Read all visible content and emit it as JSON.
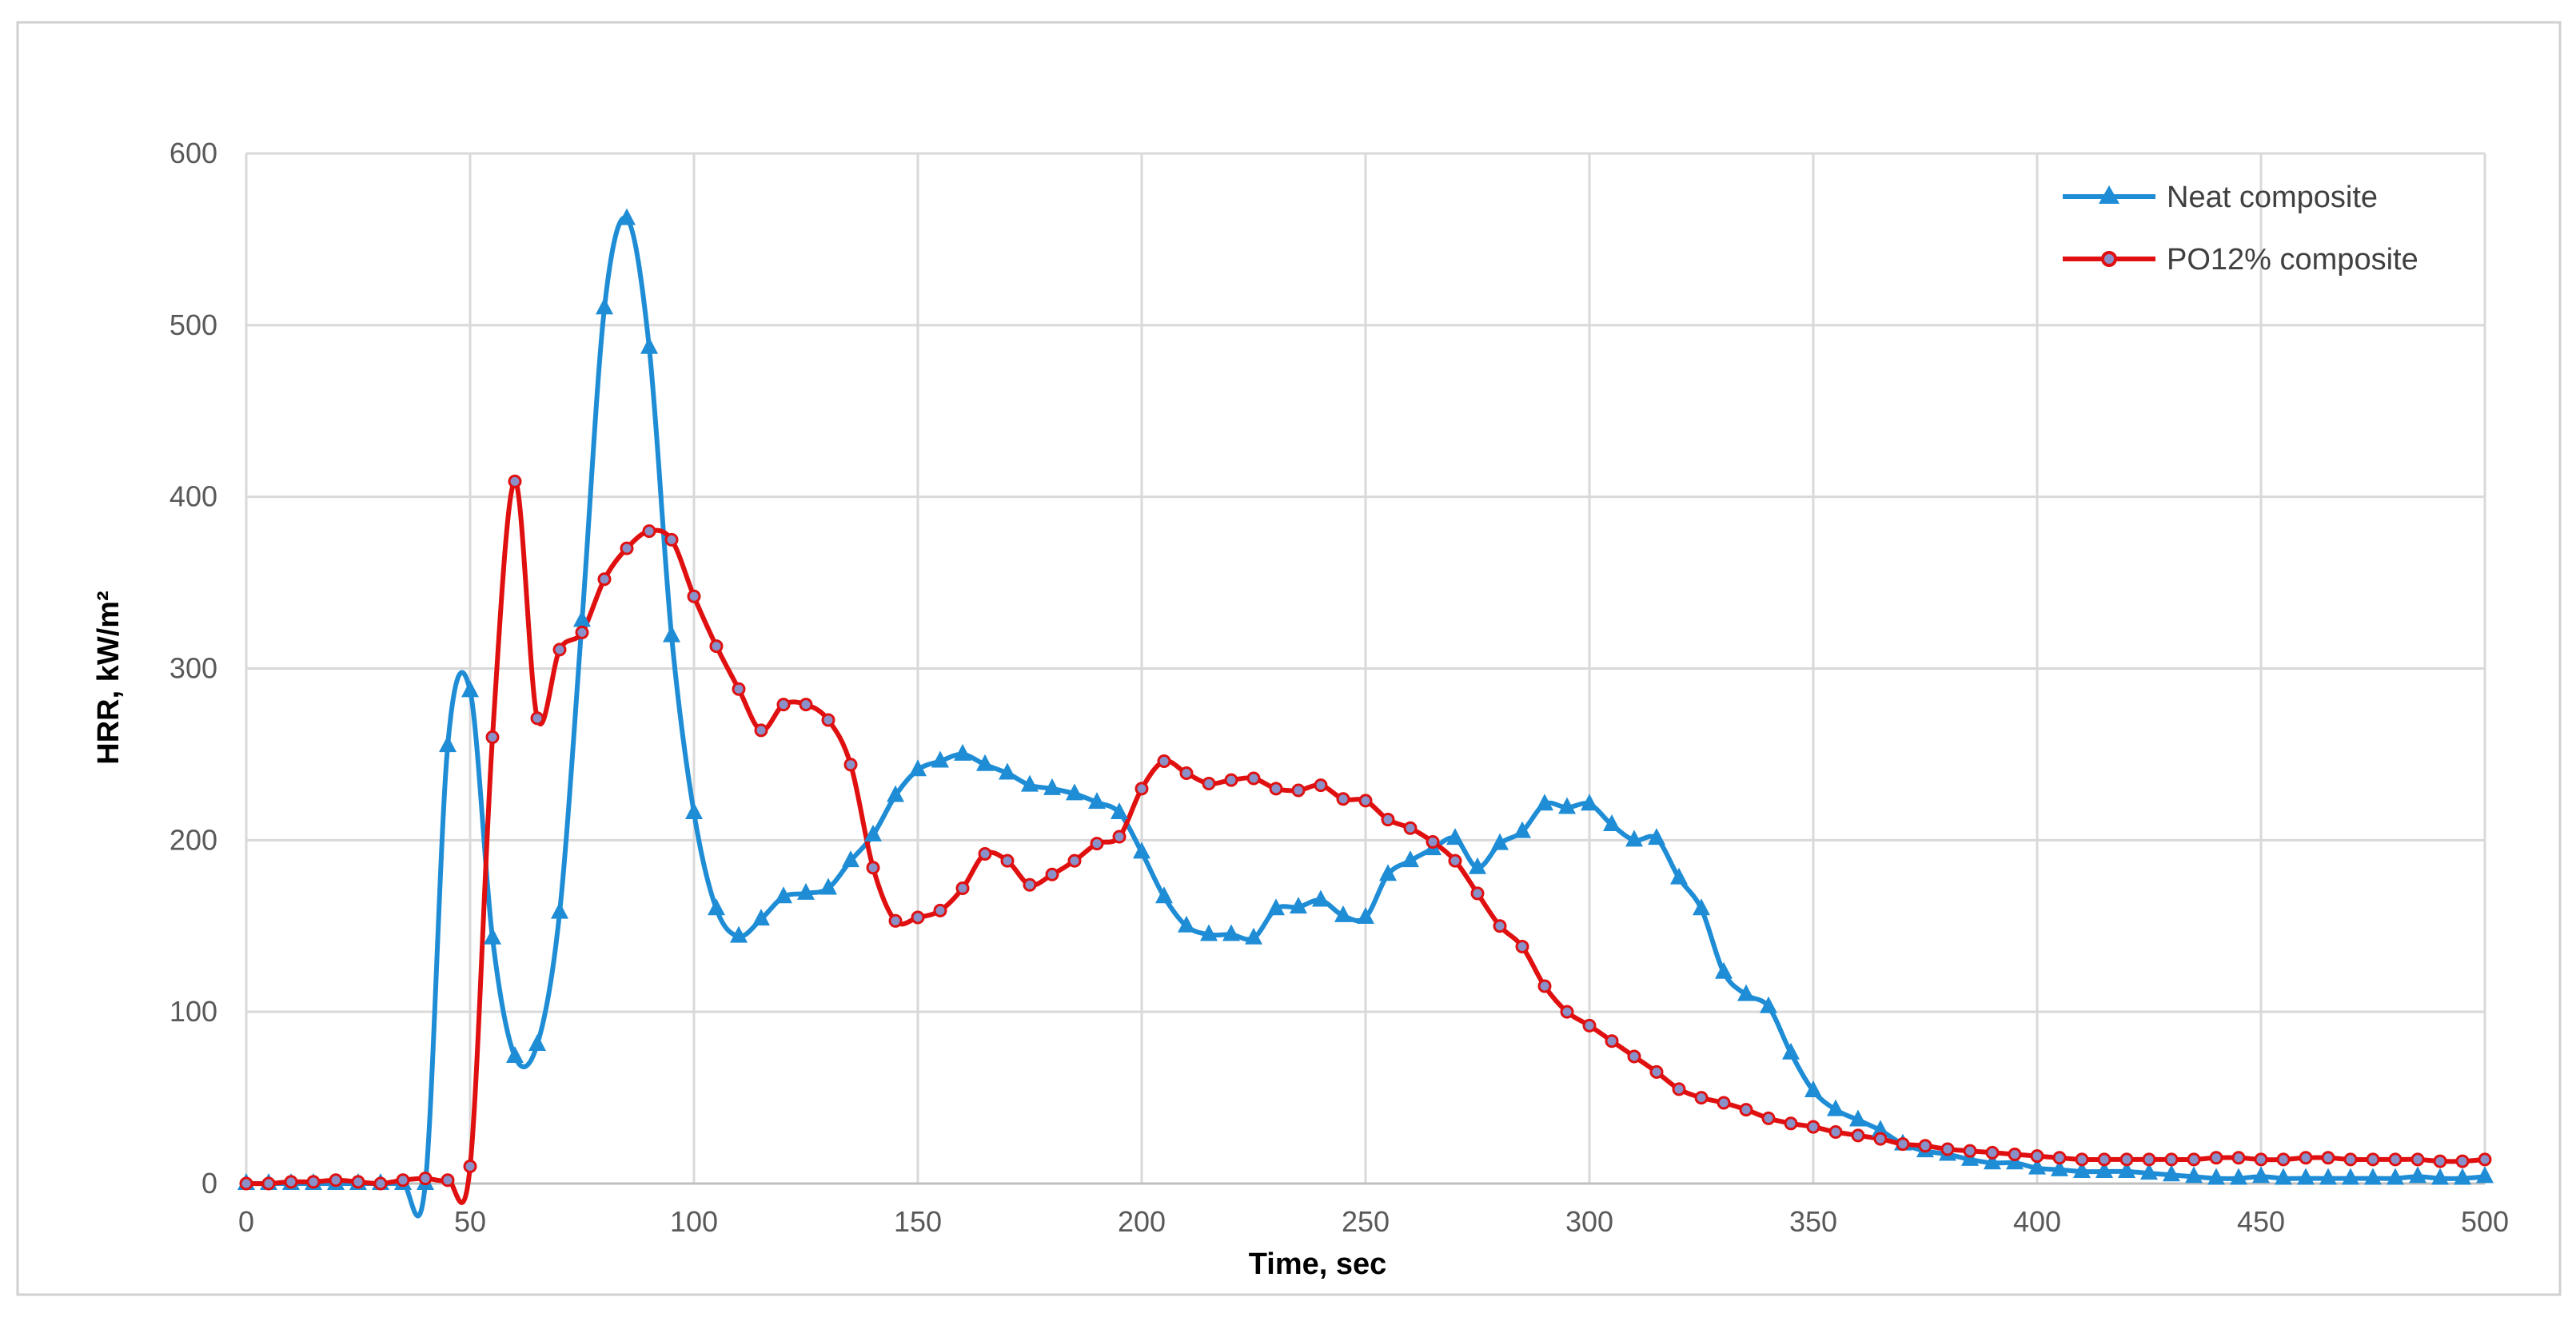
{
  "chart_data": {
    "type": "line",
    "title": "",
    "xlabel": "Time, sec",
    "ylabel": "HRR, kW/m²",
    "xlim": [
      0,
      500
    ],
    "ylim": [
      0,
      600
    ],
    "xticks": [
      0,
      50,
      100,
      150,
      200,
      250,
      300,
      350,
      400,
      450,
      500
    ],
    "yticks": [
      0,
      100,
      200,
      300,
      400,
      500,
      600
    ],
    "grid": true,
    "smooth": true,
    "legend_position": "top-right",
    "series": [
      {
        "name": "Neat composite",
        "color": "#1F8DD6",
        "marker": "triangle",
        "x": [
          0,
          5,
          10,
          15,
          20,
          25,
          30,
          35,
          40,
          45,
          50,
          55,
          60,
          65,
          70,
          75,
          80,
          85,
          90,
          95,
          100,
          105,
          110,
          115,
          120,
          125,
          130,
          135,
          140,
          145,
          150,
          155,
          160,
          165,
          170,
          175,
          180,
          185,
          190,
          195,
          200,
          205,
          210,
          215,
          220,
          225,
          230,
          235,
          240,
          245,
          250,
          255,
          260,
          265,
          270,
          275,
          280,
          285,
          290,
          295,
          300,
          305,
          310,
          315,
          320,
          325,
          330,
          335,
          340,
          345,
          350,
          355,
          360,
          365,
          370,
          375,
          380,
          385,
          390,
          395,
          400,
          405,
          410,
          415,
          420,
          425,
          430,
          435,
          440,
          445,
          450,
          455,
          460,
          465,
          470,
          475,
          480,
          485,
          490,
          495,
          500
        ],
        "y": [
          0,
          0,
          0,
          0,
          0,
          0,
          0,
          0,
          0,
          255,
          287,
          143,
          74,
          81,
          158,
          328,
          510,
          562,
          487,
          319,
          216,
          160,
          144,
          154,
          167,
          169,
          172,
          188,
          203,
          226,
          241,
          246,
          250,
          244,
          239,
          232,
          230,
          227,
          222,
          216,
          193,
          167,
          150,
          145,
          145,
          143,
          160,
          161,
          165,
          156,
          155,
          180,
          188,
          195,
          201,
          184,
          198,
          205,
          221,
          219,
          221,
          209,
          200,
          201,
          178,
          160,
          123,
          110,
          103,
          76,
          54,
          43,
          37,
          31,
          23,
          19,
          17,
          14,
          12,
          12,
          9,
          8,
          7,
          7,
          7,
          6,
          5,
          4,
          3,
          3,
          4,
          3,
          3,
          3,
          3,
          3,
          3,
          4,
          3,
          3,
          4
        ]
      },
      {
        "name": "PO12% composite",
        "color": "#E01010",
        "marker": "circle",
        "x": [
          0,
          5,
          10,
          15,
          20,
          25,
          30,
          35,
          40,
          45,
          50,
          55,
          60,
          65,
          70,
          75,
          80,
          85,
          90,
          95,
          100,
          105,
          110,
          115,
          120,
          125,
          130,
          135,
          140,
          145,
          150,
          155,
          160,
          165,
          170,
          175,
          180,
          185,
          190,
          195,
          200,
          205,
          210,
          215,
          220,
          225,
          230,
          235,
          240,
          245,
          250,
          255,
          260,
          265,
          270,
          275,
          280,
          285,
          290,
          295,
          300,
          305,
          310,
          315,
          320,
          325,
          330,
          335,
          340,
          345,
          350,
          355,
          360,
          365,
          370,
          375,
          380,
          385,
          390,
          395,
          400,
          405,
          410,
          415,
          420,
          425,
          430,
          435,
          440,
          445,
          450,
          455,
          460,
          465,
          470,
          475,
          480,
          485,
          490,
          495,
          500
        ],
        "y": [
          0,
          0,
          1,
          1,
          2,
          1,
          0,
          2,
          3,
          2,
          10,
          260,
          409,
          271,
          311,
          321,
          352,
          370,
          380,
          375,
          342,
          313,
          288,
          264,
          279,
          279,
          270,
          244,
          184,
          153,
          155,
          159,
          172,
          192,
          188,
          174,
          180,
          188,
          198,
          202,
          230,
          246,
          239,
          233,
          235,
          236,
          230,
          229,
          232,
          224,
          223,
          212,
          207,
          199,
          188,
          169,
          150,
          138,
          115,
          100,
          92,
          83,
          74,
          65,
          55,
          50,
          47,
          43,
          38,
          35,
          33,
          30,
          28,
          26,
          23,
          22,
          20,
          19,
          18,
          17,
          16,
          15,
          14,
          14,
          14,
          14,
          14,
          14,
          15,
          15,
          14,
          14,
          15,
          15,
          14,
          14,
          14,
          14,
          13,
          13,
          14
        ]
      }
    ]
  }
}
